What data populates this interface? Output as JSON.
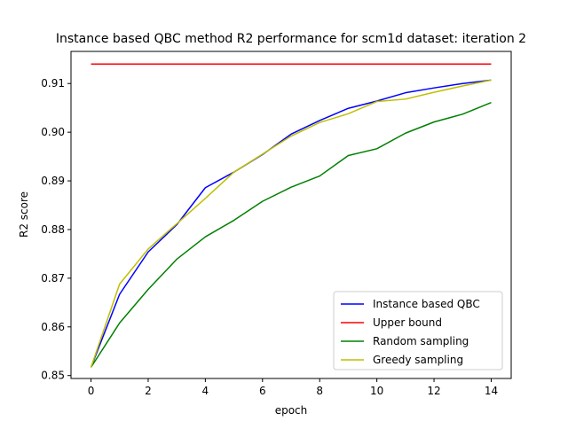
{
  "chart_data": {
    "type": "line",
    "title": "Instance based QBC method R2 performance for scm1d dataset: iteration 2",
    "xlabel": "epoch",
    "ylabel": "R2 score",
    "xlim": [
      -0.7,
      14.7
    ],
    "ylim": [
      0.8494,
      0.9166
    ],
    "x_ticks": [
      0,
      2,
      4,
      6,
      8,
      10,
      12,
      14
    ],
    "y_ticks": [
      0.85,
      0.86,
      0.87,
      0.88,
      0.89,
      0.9,
      0.91
    ],
    "y_tick_labels": [
      "0.85",
      "0.86",
      "0.87",
      "0.88",
      "0.89",
      "0.90",
      "0.91"
    ],
    "x": [
      0,
      1,
      2,
      3,
      4,
      5,
      6,
      7,
      8,
      9,
      10,
      11,
      12,
      13,
      14
    ],
    "legend_position": "lower right",
    "grid": false,
    "series": [
      {
        "name": "Instance based QBC",
        "color": "#0000ff",
        "values": [
          0.8517,
          0.8667,
          0.8754,
          0.881,
          0.8886,
          0.8918,
          0.8954,
          0.8996,
          0.9024,
          0.9049,
          0.9064,
          0.9081,
          0.9091,
          0.91,
          0.9107
        ]
      },
      {
        "name": "Upper bound",
        "color": "#ff0000",
        "values": [
          0.914,
          0.914,
          0.914,
          0.914,
          0.914,
          0.914,
          0.914,
          0.914,
          0.914,
          0.914,
          0.914,
          0.914,
          0.914,
          0.914,
          0.914
        ]
      },
      {
        "name": "Random sampling",
        "color": "#008000",
        "values": [
          0.8517,
          0.8608,
          0.8677,
          0.8739,
          0.8785,
          0.8819,
          0.8858,
          0.8887,
          0.891,
          0.8952,
          0.8966,
          0.8998,
          0.9021,
          0.9037,
          0.9061
        ]
      },
      {
        "name": "Greedy sampling",
        "color": "#bfbf00",
        "values": [
          0.8517,
          0.8688,
          0.876,
          0.8812,
          0.8864,
          0.8918,
          0.8955,
          0.8992,
          0.902,
          0.9038,
          0.9063,
          0.9068,
          0.9082,
          0.9095,
          0.9107
        ]
      }
    ]
  }
}
